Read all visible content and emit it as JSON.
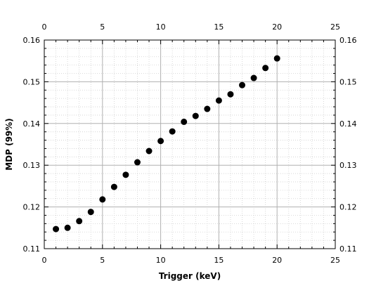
{
  "chart_data": {
    "type": "scatter",
    "title": "",
    "xlabel": "Trigger (keV)",
    "ylabel": "MDP (99%)",
    "xlim": [
      0,
      25
    ],
    "ylim": [
      0.11,
      0.16
    ],
    "x_ticks": [
      0,
      5,
      10,
      15,
      20,
      25
    ],
    "y_ticks": [
      0.11,
      0.12,
      0.13,
      0.14,
      0.15,
      0.16
    ],
    "x_tick_labels": [
      "0",
      "5",
      "10",
      "15",
      "20",
      "25"
    ],
    "y_tick_labels": [
      "0.11",
      "0.12",
      "0.13",
      "0.14",
      "0.15",
      "0.16"
    ],
    "x_minor_step": 1,
    "y_minor_step": 0.002,
    "grid": true,
    "marker_color": "#000000",
    "series": [
      {
        "name": "MDP",
        "x": [
          1,
          2,
          3,
          4,
          5,
          6,
          7,
          8,
          9,
          10,
          11,
          12,
          13,
          14,
          15,
          16,
          17,
          18,
          19,
          20
        ],
        "y": [
          0.1147,
          0.115,
          0.1166,
          0.1188,
          0.1218,
          0.1248,
          0.1277,
          0.1307,
          0.1334,
          0.1358,
          0.1381,
          0.1404,
          0.1418,
          0.1435,
          0.1455,
          0.147,
          0.1492,
          0.1509,
          0.1533,
          0.1556
        ]
      }
    ]
  }
}
